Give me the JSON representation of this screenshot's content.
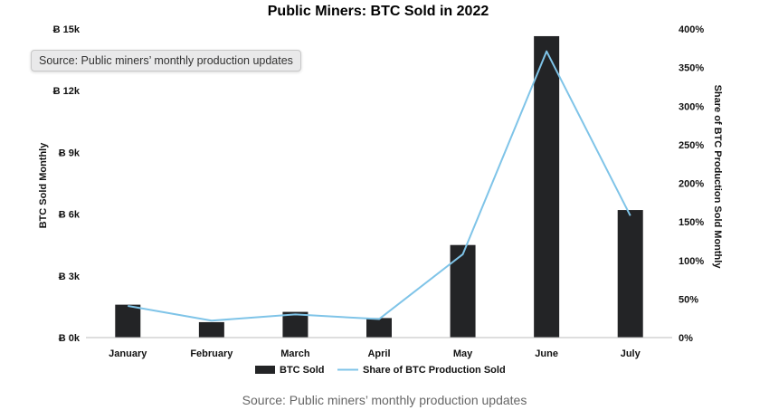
{
  "tooltip": "Source: Public miners’ monthly production updates",
  "source": "Source: Public miners’ monthly production updates",
  "colors": {
    "bar": "#232426",
    "line": "#7fc4e8",
    "axis": "#bdbdbd"
  },
  "chart_data": {
    "type": "bar",
    "title": "Public Miners: BTC Sold in 2022",
    "categories": [
      "January",
      "February",
      "March",
      "April",
      "May",
      "June",
      "July"
    ],
    "ylabel": "BTC Sold Monthly",
    "y2label": "Share of BTC Production Sold Monthly",
    "ylim": [
      0,
      15000
    ],
    "y2lim": [
      0,
      400
    ],
    "yticks": [
      "Ƀ 0k",
      "Ƀ 3k",
      "Ƀ 6k",
      "Ƀ 9k",
      "Ƀ 12k",
      "Ƀ 15k"
    ],
    "y2ticks": [
      "0%",
      "50%",
      "100%",
      "150%",
      "200%",
      "250%",
      "300%",
      "350%",
      "400%"
    ],
    "legend_position": "bottom",
    "grid": false,
    "series": [
      {
        "name": "BTC Sold",
        "type": "bar",
        "axis": "left",
        "values": [
          1600,
          750,
          1250,
          950,
          4500,
          14650,
          6200
        ]
      },
      {
        "name": "Share of BTC Production Sold",
        "type": "line",
        "axis": "right",
        "values": [
          41,
          22,
          30,
          24,
          108,
          371,
          158
        ]
      }
    ]
  }
}
